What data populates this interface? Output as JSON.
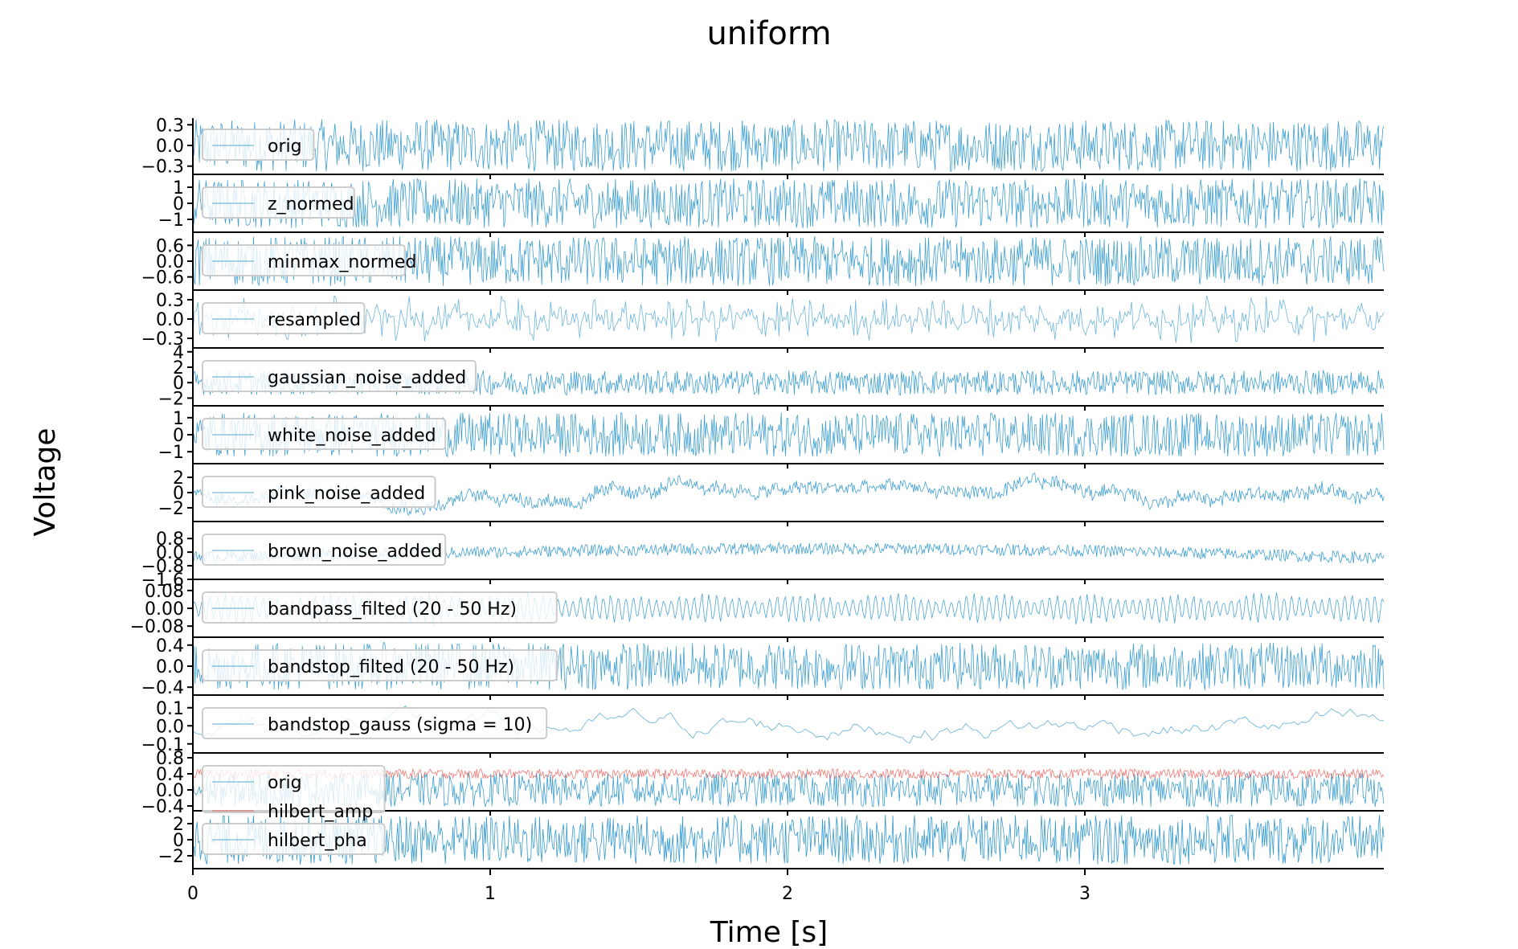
{
  "chart_data": {
    "type": "line",
    "title": "uniform",
    "xlabel": "Time [s]",
    "ylabel": "Voltage",
    "xlim": [
      0,
      4
    ],
    "xticks": [
      "0",
      "1",
      "2",
      "3"
    ],
    "grid": false,
    "colors": {
      "main": "#1f8fc9",
      "secondary": "#e8423a"
    },
    "panels": [
      {
        "legend": [
          "orig"
        ],
        "yticks": [
          "0.3",
          "0.0",
          "−0.3"
        ],
        "ytick_values": [
          0.3,
          0.0,
          -0.3
        ],
        "ylim": [
          -0.42,
          0.42
        ],
        "style": "noise",
        "amplitude": 0.38,
        "offset": 0,
        "opacity": 0.85
      },
      {
        "legend": [
          "z_normed"
        ],
        "yticks": [
          "1",
          "0",
          "−1"
        ],
        "ytick_values": [
          1,
          0,
          -1
        ],
        "ylim": [
          -1.8,
          1.8
        ],
        "style": "noise",
        "amplitude": 1.55,
        "offset": 0,
        "opacity": 0.85
      },
      {
        "legend": [
          "minmax_normed"
        ],
        "yticks": [
          "0.6",
          "0.0",
          "−0.6"
        ],
        "ytick_values": [
          0.6,
          0.0,
          -0.6
        ],
        "ylim": [
          -1.1,
          1.1
        ],
        "style": "noise",
        "amplitude": 0.95,
        "offset": 0,
        "opacity": 0.85
      },
      {
        "legend": [
          "resampled"
        ],
        "yticks": [
          "0.3",
          "0.0",
          "−0.3"
        ],
        "ytick_values": [
          0.3,
          0.0,
          -0.3
        ],
        "ylim": [
          -0.45,
          0.45
        ],
        "style": "sparse",
        "amplitude": 0.38,
        "offset": 0,
        "opacity": 0.65
      },
      {
        "legend": [
          "gaussian_noise_added"
        ],
        "yticks": [
          "4",
          "2",
          "0",
          "−2"
        ],
        "ytick_values": [
          4,
          2,
          0,
          -2
        ],
        "ylim": [
          -3,
          4.5
        ],
        "style": "noise",
        "amplitude": 1.6,
        "offset": 0,
        "opacity": 0.85
      },
      {
        "legend": [
          "white_noise_added"
        ],
        "yticks": [
          "1",
          "0",
          "−1"
        ],
        "ytick_values": [
          1,
          0,
          -1
        ],
        "ylim": [
          -1.7,
          1.7
        ],
        "style": "noise",
        "amplitude": 1.3,
        "offset": 0,
        "opacity": 0.85
      },
      {
        "legend": [
          "pink_noise_added"
        ],
        "yticks": [
          "2",
          "0",
          "−2"
        ],
        "ytick_values": [
          2,
          0,
          -2
        ],
        "ylim": [
          -3.8,
          3.8
        ],
        "style": "pink",
        "amplitude": 1.2,
        "offset": 0,
        "opacity": 0.85
      },
      {
        "legend": [
          "brown_noise_added"
        ],
        "yticks": [
          "0.8",
          "0.0",
          "−0.8",
          "−1.6"
        ],
        "ytick_values": [
          0.8,
          0.0,
          -0.8,
          -1.6
        ],
        "ylim": [
          -1.6,
          1.8
        ],
        "style": "brown",
        "amplitude": 0.35,
        "offset": 0,
        "opacity": 0.85
      },
      {
        "legend": [
          "bandpass_filted (20 - 50 Hz)"
        ],
        "yticks": [
          "0.08",
          "0.00",
          "−0.08"
        ],
        "ytick_values": [
          0.08,
          0.0,
          -0.08
        ],
        "ylim": [
          -0.13,
          0.13
        ],
        "style": "band",
        "amplitude": 0.075,
        "offset": 0,
        "opacity": 0.8
      },
      {
        "legend": [
          "bandstop_filted (20 - 50 Hz)"
        ],
        "yticks": [
          "0.4",
          "0.0",
          "−0.4"
        ],
        "ytick_values": [
          0.4,
          0.0,
          -0.4
        ],
        "ylim": [
          -0.55,
          0.55
        ],
        "style": "noise",
        "amplitude": 0.45,
        "offset": 0,
        "opacity": 0.85
      },
      {
        "legend": [
          "bandstop_gauss (sigma = 10)"
        ],
        "yticks": [
          "0.1",
          "0.0",
          "−0.1"
        ],
        "ytick_values": [
          0.1,
          0.0,
          -0.1
        ],
        "ylim": [
          -0.15,
          0.17
        ],
        "style": "smooth",
        "amplitude": 0.08,
        "offset": 0,
        "opacity": 0.7
      },
      {
        "legend": [
          "orig",
          "hilbert_amp"
        ],
        "yticks": [
          "0.8",
          "0.4",
          "0.0",
          "−0.4"
        ],
        "ytick_values": [
          0.8,
          0.4,
          0.0,
          -0.4
        ],
        "ylim": [
          -0.52,
          0.92
        ],
        "style": "noise",
        "amplitude": 0.42,
        "offset": 0,
        "opacity": 0.85,
        "overlay": {
          "amplitude": 0.12,
          "offset": 0.4
        }
      },
      {
        "legend": [
          "hilbert_pha"
        ],
        "yticks": [
          "2",
          "0",
          "−2"
        ],
        "ytick_values": [
          2,
          0,
          -2
        ],
        "ylim": [
          -3.6,
          3.6
        ],
        "style": "noise",
        "amplitude": 3.1,
        "offset": 0,
        "opacity": 0.9
      }
    ]
  }
}
